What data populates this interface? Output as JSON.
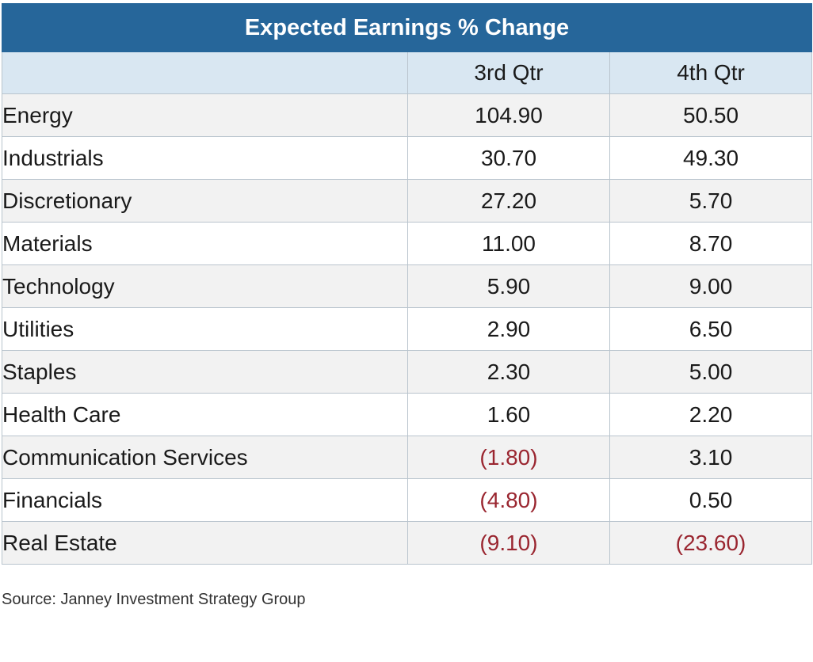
{
  "table": {
    "title": "Expected Earnings % Change",
    "columns": [
      "",
      "3rd Qtr",
      "4th Qtr"
    ]
  },
  "chart_data": {
    "type": "table",
    "title": "Expected Earnings % Change",
    "columns": [
      "3rd Qtr",
      "4th Qtr"
    ],
    "rows": [
      {
        "sector": "Energy",
        "q3": "104.90",
        "q4": "50.50"
      },
      {
        "sector": "Industrials",
        "q3": "30.70",
        "q4": "49.30"
      },
      {
        "sector": "Discretionary",
        "q3": "27.20",
        "q4": "5.70"
      },
      {
        "sector": "Materials",
        "q3": "11.00",
        "q4": "8.70"
      },
      {
        "sector": "Technology",
        "q3": "5.90",
        "q4": "9.00"
      },
      {
        "sector": "Utilities",
        "q3": "2.90",
        "q4": "6.50"
      },
      {
        "sector": "Staples",
        "q3": "2.30",
        "q4": "5.00"
      },
      {
        "sector": "Health Care",
        "q3": "1.60",
        "q4": "2.20"
      },
      {
        "sector": "Communication Services",
        "q3": "(1.80)",
        "q4": "3.10"
      },
      {
        "sector": "Financials",
        "q3": "(4.80)",
        "q4": "0.50"
      },
      {
        "sector": "Real Estate",
        "q3": "(9.10)",
        "q4": "(23.60)"
      }
    ]
  },
  "footer": {
    "source": "Source: Janney Investment Strategy Group"
  },
  "colors": {
    "header": "#26669a",
    "subheader": "#d9e7f2",
    "negative": "#9a2630"
  }
}
